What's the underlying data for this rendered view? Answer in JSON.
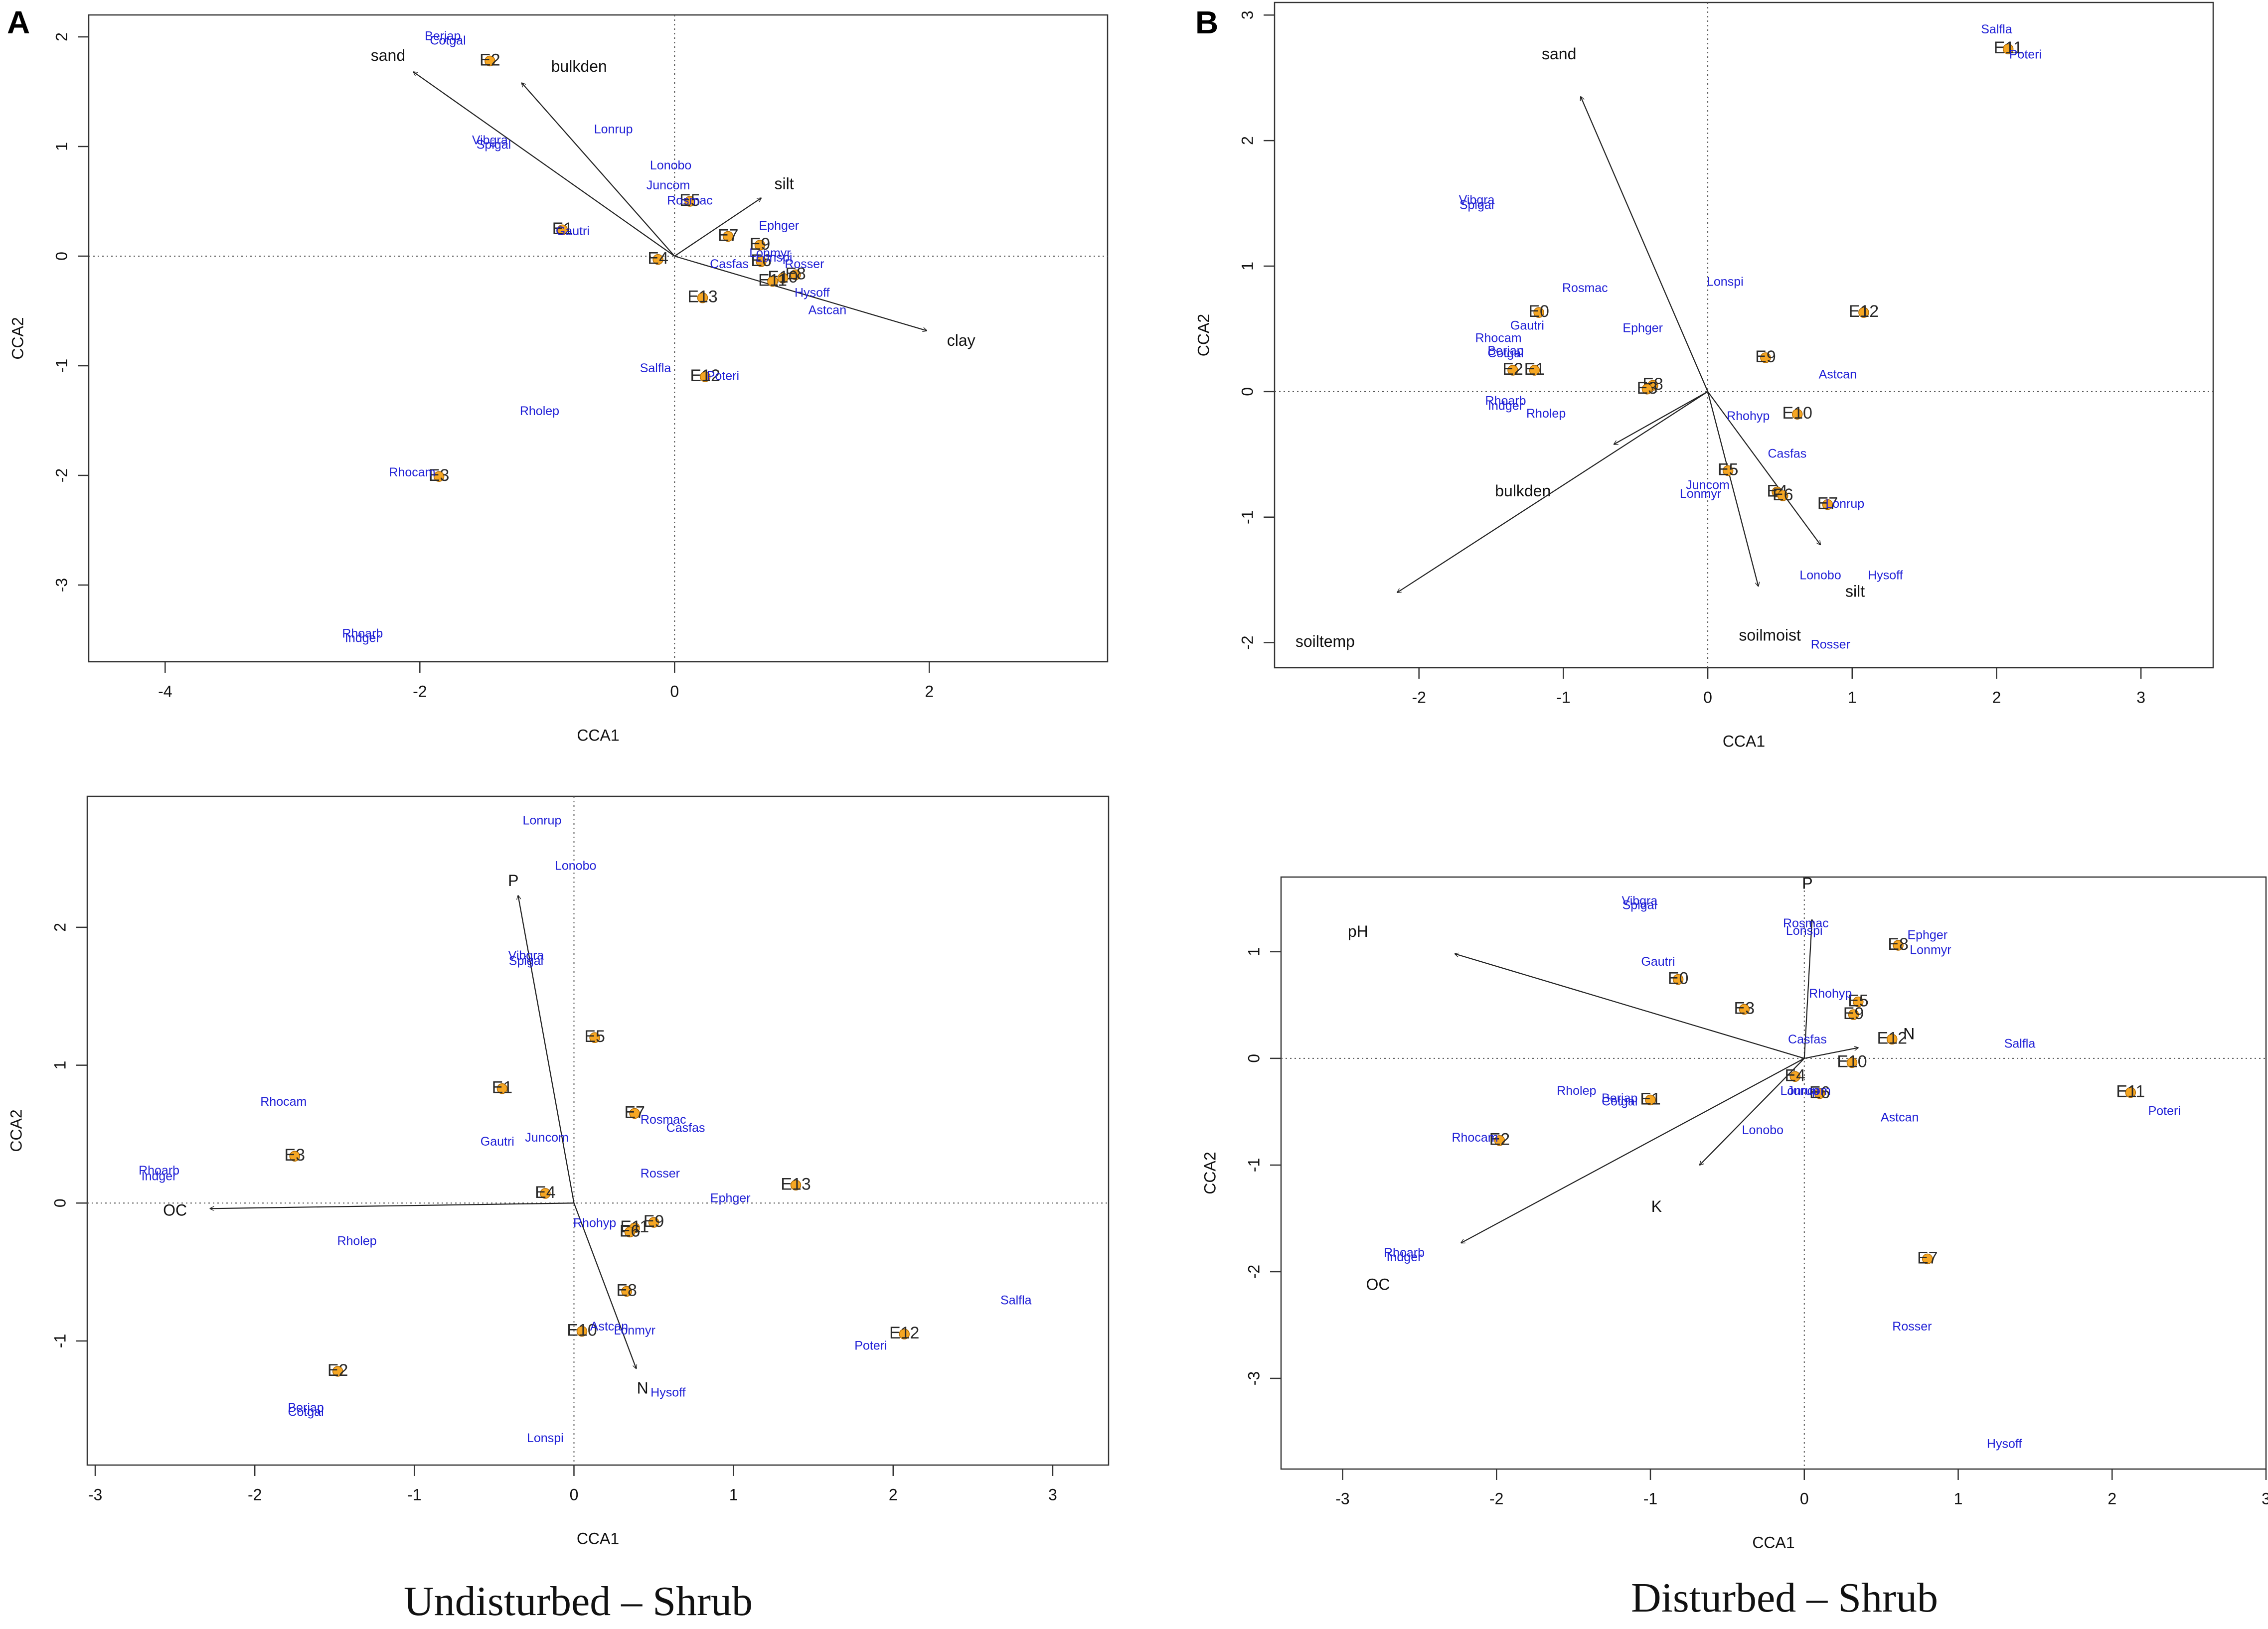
{
  "panel_letters": {
    "a": "A",
    "b": "B"
  },
  "captions": {
    "left": "Undisturbed – Shrub",
    "right": "Disturbed – Shrub"
  },
  "colors": {
    "species": "#1f1fd6",
    "site_marker": "#f5a623",
    "text": "#111111",
    "axis": "#333333"
  },
  "chart_data": [
    {
      "id": "ud_top",
      "type": "scatter",
      "title": "",
      "xlabel": "CCA1",
      "ylabel": "CCA2",
      "xlim": [
        -4.6,
        3.4
      ],
      "ylim": [
        -3.7,
        2.2
      ],
      "xticks": [
        -4,
        -2,
        0,
        2
      ],
      "yticks": [
        -3,
        -2,
        -1,
        0,
        1,
        2
      ],
      "arrows": [
        {
          "label": "sand",
          "x": -2.05,
          "y": 1.68,
          "lx": -2.25,
          "ly": 1.82
        },
        {
          "label": "bulkden",
          "x": -1.2,
          "y": 1.58,
          "lx": -0.75,
          "ly": 1.72
        },
        {
          "label": "silt",
          "x": 0.68,
          "y": 0.53,
          "lx": 0.86,
          "ly": 0.65
        },
        {
          "label": "clay",
          "x": 1.98,
          "y": -0.68,
          "lx": 2.25,
          "ly": -0.78
        }
      ],
      "sites": [
        {
          "label": "E2",
          "x": -1.45,
          "y": 1.78
        },
        {
          "label": "E1",
          "x": -0.88,
          "y": 0.24
        },
        {
          "label": "E5",
          "x": 0.12,
          "y": 0.5
        },
        {
          "label": "E7",
          "x": 0.42,
          "y": 0.18
        },
        {
          "label": "E9",
          "x": 0.67,
          "y": 0.1
        },
        {
          "label": "E4",
          "x": -0.13,
          "y": -0.03
        },
        {
          "label": "E6",
          "x": 0.68,
          "y": -0.05
        },
        {
          "label": "E8",
          "x": 0.95,
          "y": -0.17
        },
        {
          "label": "E10",
          "x": 0.85,
          "y": -0.2
        },
        {
          "label": "E11",
          "x": 0.77,
          "y": -0.23
        },
        {
          "label": "E13",
          "x": 0.22,
          "y": -0.38
        },
        {
          "label": "E12",
          "x": 0.24,
          "y": -1.1
        },
        {
          "label": "E3",
          "x": -1.85,
          "y": -2.01
        }
      ],
      "species": [
        {
          "label": "Berjap",
          "x": -1.82,
          "y": 2.0
        },
        {
          "label": "Cotgal",
          "x": -1.78,
          "y": 1.96
        },
        {
          "label": "Lonrup",
          "x": -0.48,
          "y": 1.15
        },
        {
          "label": "Vibgra",
          "x": -1.45,
          "y": 1.05
        },
        {
          "label": "Spigal",
          "x": -1.42,
          "y": 1.01
        },
        {
          "label": "Lonobo",
          "x": -0.03,
          "y": 0.82
        },
        {
          "label": "Juncom",
          "x": -0.05,
          "y": 0.64
        },
        {
          "label": "Rosmac",
          "x": 0.12,
          "y": 0.5
        },
        {
          "label": "Gautri",
          "x": -0.8,
          "y": 0.22
        },
        {
          "label": "Ephger",
          "x": 0.82,
          "y": 0.27
        },
        {
          "label": "Lonmyr",
          "x": 0.75,
          "y": 0.02
        },
        {
          "label": "Lonspi",
          "x": 0.78,
          "y": -0.02
        },
        {
          "label": "Casfas",
          "x": 0.43,
          "y": -0.08
        },
        {
          "label": "Rosser",
          "x": 1.02,
          "y": -0.08
        },
        {
          "label": "Hysoff",
          "x": 1.08,
          "y": -0.34
        },
        {
          "label": "Astcan",
          "x": 1.2,
          "y": -0.5
        },
        {
          "label": "Salfla",
          "x": -0.15,
          "y": -1.03
        },
        {
          "label": "Poteri",
          "x": 0.38,
          "y": -1.1
        },
        {
          "label": "Rholep",
          "x": -1.06,
          "y": -1.42
        },
        {
          "label": "Rhocam",
          "x": -2.06,
          "y": -1.98
        },
        {
          "label": "Rhoarb",
          "x": -2.45,
          "y": -3.45
        },
        {
          "label": "Indger",
          "x": -2.45,
          "y": -3.49
        }
      ]
    },
    {
      "id": "d_top",
      "type": "scatter",
      "title": "",
      "xlabel": "CCA1",
      "ylabel": "CCA2",
      "xlim": [
        -3.0,
        3.5
      ],
      "ylim": [
        -2.2,
        3.1
      ],
      "xticks": [
        -2,
        -1,
        0,
        1,
        2,
        3
      ],
      "yticks": [
        -2,
        -1,
        0,
        1,
        2,
        3
      ],
      "arrows": [
        {
          "label": "sand",
          "x": -0.88,
          "y": 2.35,
          "lx": -1.03,
          "ly": 2.68
        },
        {
          "label": "bulkden",
          "x": -0.65,
          "y": -0.42,
          "lx": -1.28,
          "ly": -0.8
        },
        {
          "label": "soiltemp",
          "x": -2.15,
          "y": -1.6,
          "lx": -2.65,
          "ly": -2.0
        },
        {
          "label": "soilmoist",
          "x": 0.35,
          "y": -1.55,
          "lx": 0.43,
          "ly": -1.95
        },
        {
          "label": "silt",
          "x": 0.78,
          "y": -1.22,
          "lx": 1.02,
          "ly": -1.6
        }
      ],
      "sites": [
        {
          "label": "E11",
          "x": 2.08,
          "y": 2.73
        },
        {
          "label": "E12",
          "x": 1.08,
          "y": 0.63
        },
        {
          "label": "E0",
          "x": -1.17,
          "y": 0.63
        },
        {
          "label": "E9",
          "x": 0.4,
          "y": 0.27
        },
        {
          "label": "E2",
          "x": -1.35,
          "y": 0.17
        },
        {
          "label": "E1",
          "x": -1.2,
          "y": 0.17
        },
        {
          "label": "E8",
          "x": -0.38,
          "y": 0.05
        },
        {
          "label": "E3",
          "x": -0.42,
          "y": 0.02
        },
        {
          "label": "E10",
          "x": 0.62,
          "y": -0.18
        },
        {
          "label": "E5",
          "x": 0.14,
          "y": -0.63
        },
        {
          "label": "E4",
          "x": 0.48,
          "y": -0.8
        },
        {
          "label": "E6",
          "x": 0.52,
          "y": -0.83
        },
        {
          "label": "E7",
          "x": 0.83,
          "y": -0.9
        }
      ],
      "species": [
        {
          "label": "Salfla",
          "x": 2.0,
          "y": 2.88
        },
        {
          "label": "Poteri",
          "x": 2.2,
          "y": 2.68
        },
        {
          "label": "Vibgra",
          "x": -1.6,
          "y": 1.52
        },
        {
          "label": "Spigal",
          "x": -1.6,
          "y": 1.48
        },
        {
          "label": "Lonspi",
          "x": 0.12,
          "y": 0.87
        },
        {
          "label": "Rosmac",
          "x": -0.85,
          "y": 0.82
        },
        {
          "label": "Gautri",
          "x": -1.25,
          "y": 0.52
        },
        {
          "label": "Ephger",
          "x": -0.45,
          "y": 0.5
        },
        {
          "label": "Rhocam",
          "x": -1.45,
          "y": 0.42
        },
        {
          "label": "Berjap",
          "x": -1.4,
          "y": 0.32
        },
        {
          "label": "Cotgal",
          "x": -1.4,
          "y": 0.3
        },
        {
          "label": "Astcan",
          "x": 0.9,
          "y": 0.13
        },
        {
          "label": "Rhoarb",
          "x": -1.4,
          "y": -0.08
        },
        {
          "label": "Indger",
          "x": -1.4,
          "y": -0.12
        },
        {
          "label": "Rholep",
          "x": -1.12,
          "y": -0.18
        },
        {
          "label": "Rhohyp",
          "x": 0.28,
          "y": -0.2
        },
        {
          "label": "Casfas",
          "x": 0.55,
          "y": -0.5
        },
        {
          "label": "Juncom",
          "x": 0.0,
          "y": -0.75
        },
        {
          "label": "Lonmyr",
          "x": -0.05,
          "y": -0.82
        },
        {
          "label": "Lonrup",
          "x": 0.95,
          "y": -0.9
        },
        {
          "label": "Lonobo",
          "x": 0.78,
          "y": -1.47
        },
        {
          "label": "Hysoff",
          "x": 1.23,
          "y": -1.47
        },
        {
          "label": "Rosser",
          "x": 0.85,
          "y": -2.02
        }
      ]
    },
    {
      "id": "ud_bottom",
      "type": "scatter",
      "title": "",
      "xlabel": "CCA1",
      "ylabel": "CCA2",
      "xlim": [
        -3.05,
        3.35
      ],
      "ylim": [
        -1.9,
        2.95
      ],
      "xticks": [
        -3,
        -2,
        -1,
        0,
        1,
        2,
        3
      ],
      "yticks": [
        -1,
        0,
        1,
        2
      ],
      "arrows": [
        {
          "label": "P",
          "x": -0.35,
          "y": 2.23,
          "lx": -0.38,
          "ly": 2.33
        },
        {
          "label": "OC",
          "x": -2.28,
          "y": -0.04,
          "lx": -2.5,
          "ly": -0.06
        },
        {
          "label": "N",
          "x": 0.39,
          "y": -1.2,
          "lx": 0.43,
          "ly": -1.35
        }
      ],
      "sites": [
        {
          "label": "E5",
          "x": 0.13,
          "y": 1.2
        },
        {
          "label": "E1",
          "x": -0.45,
          "y": 0.83
        },
        {
          "label": "E7",
          "x": 0.38,
          "y": 0.65
        },
        {
          "label": "E3",
          "x": -1.75,
          "y": 0.34
        },
        {
          "label": "E4",
          "x": -0.18,
          "y": 0.07
        },
        {
          "label": "E13",
          "x": 1.39,
          "y": 0.13
        },
        {
          "label": "E9",
          "x": 0.5,
          "y": -0.14
        },
        {
          "label": "E11",
          "x": 0.38,
          "y": -0.18
        },
        {
          "label": "E6",
          "x": 0.35,
          "y": -0.21
        },
        {
          "label": "E8",
          "x": 0.33,
          "y": -0.64
        },
        {
          "label": "E10",
          "x": 0.05,
          "y": -0.93
        },
        {
          "label": "E12",
          "x": 2.07,
          "y": -0.95
        },
        {
          "label": "E2",
          "x": -1.48,
          "y": -1.22
        }
      ],
      "species": [
        {
          "label": "Lonrup",
          "x": -0.2,
          "y": 2.77
        },
        {
          "label": "Lonobo",
          "x": 0.01,
          "y": 2.44
        },
        {
          "label": "Vibgra",
          "x": -0.3,
          "y": 1.79
        },
        {
          "label": "Spigal",
          "x": -0.3,
          "y": 1.75
        },
        {
          "label": "Rhocam",
          "x": -1.82,
          "y": 0.73
        },
        {
          "label": "Rosmac",
          "x": 0.56,
          "y": 0.6
        },
        {
          "label": "Casfas",
          "x": 0.7,
          "y": 0.54
        },
        {
          "label": "Juncom",
          "x": -0.17,
          "y": 0.47
        },
        {
          "label": "Gautri",
          "x": -0.48,
          "y": 0.44
        },
        {
          "label": "Rhoarb",
          "x": -2.6,
          "y": 0.23
        },
        {
          "label": "Indger",
          "x": -2.6,
          "y": 0.19
        },
        {
          "label": "Rosser",
          "x": 0.54,
          "y": 0.21
        },
        {
          "label": "Ephger",
          "x": 0.98,
          "y": 0.03
        },
        {
          "label": "Rhohyp",
          "x": 0.13,
          "y": -0.15
        },
        {
          "label": "Rholep",
          "x": -1.36,
          "y": -0.28
        },
        {
          "label": "Astcan",
          "x": 0.22,
          "y": -0.9
        },
        {
          "label": "Lonmyr",
          "x": 0.38,
          "y": -0.93
        },
        {
          "label": "Poteri",
          "x": 1.86,
          "y": -1.04
        },
        {
          "label": "Salfla",
          "x": 2.77,
          "y": -0.71
        },
        {
          "label": "Hysoff",
          "x": 0.59,
          "y": -1.38
        },
        {
          "label": "Berjap",
          "x": -1.68,
          "y": -1.49
        },
        {
          "label": "Cotgal",
          "x": -1.68,
          "y": -1.52
        },
        {
          "label": "Lonspi",
          "x": -0.18,
          "y": -1.71
        }
      ]
    },
    {
      "id": "d_bottom",
      "type": "scatter",
      "title": "",
      "xlabel": "CCA1",
      "ylabel": "CCA2",
      "xlim": [
        -3.4,
        3.0
      ],
      "ylim": [
        -3.85,
        1.7
      ],
      "xticks": [
        -3,
        -2,
        -1,
        0,
        1,
        2,
        3
      ],
      "yticks": [
        -3,
        -2,
        -1,
        0,
        1
      ],
      "arrows": [
        {
          "label": "P",
          "x": 0.05,
          "y": 1.3,
          "lx": 0.02,
          "ly": 1.63
        },
        {
          "label": "pH",
          "x": -2.27,
          "y": 0.98,
          "lx": -2.9,
          "ly": 1.18
        },
        {
          "label": "N",
          "x": 0.35,
          "y": 0.1,
          "lx": 0.68,
          "ly": 0.22
        },
        {
          "label": "K",
          "x": -0.68,
          "y": -1.0,
          "lx": -0.96,
          "ly": -1.4
        },
        {
          "label": "OC",
          "x": -2.23,
          "y": -1.73,
          "lx": -2.77,
          "ly": -2.13
        }
      ],
      "sites": [
        {
          "label": "E8",
          "x": 0.61,
          "y": 1.06
        },
        {
          "label": "E0",
          "x": -0.82,
          "y": 0.74
        },
        {
          "label": "E3",
          "x": -0.39,
          "y": 0.46
        },
        {
          "label": "E5",
          "x": 0.35,
          "y": 0.53
        },
        {
          "label": "E9",
          "x": 0.32,
          "y": 0.41
        },
        {
          "label": "E12",
          "x": 0.57,
          "y": 0.18
        },
        {
          "label": "E10",
          "x": 0.31,
          "y": -0.04
        },
        {
          "label": "E4",
          "x": -0.06,
          "y": -0.17
        },
        {
          "label": "E6",
          "x": 0.1,
          "y": -0.33
        },
        {
          "label": "E1",
          "x": -1.0,
          "y": -0.39
        },
        {
          "label": "E11",
          "x": 2.12,
          "y": -0.32
        },
        {
          "label": "E2",
          "x": -1.98,
          "y": -0.77
        },
        {
          "label": "E7",
          "x": 0.8,
          "y": -1.88
        }
      ],
      "species": [
        {
          "label": "Vibgra",
          "x": -1.07,
          "y": 1.47
        },
        {
          "label": "Spigal",
          "x": -1.07,
          "y": 1.43
        },
        {
          "label": "Rosmac",
          "x": 0.01,
          "y": 1.26
        },
        {
          "label": "Lonspi",
          "x": 0.0,
          "y": 1.19
        },
        {
          "label": "Ephger",
          "x": 0.8,
          "y": 1.15
        },
        {
          "label": "Lonmyr",
          "x": 0.82,
          "y": 1.01
        },
        {
          "label": "Gautri",
          "x": -0.95,
          "y": 0.9
        },
        {
          "label": "Rhohyp",
          "x": 0.17,
          "y": 0.6
        },
        {
          "label": "Casfas",
          "x": 0.02,
          "y": 0.17
        },
        {
          "label": "Salfla",
          "x": 1.4,
          "y": 0.13
        },
        {
          "label": "Rholep",
          "x": -1.48,
          "y": -0.31
        },
        {
          "label": "Berjap",
          "x": -1.2,
          "y": -0.38
        },
        {
          "label": "Cotgal",
          "x": -1.2,
          "y": -0.41
        },
        {
          "label": "Lonrup",
          "x": -0.03,
          "y": -0.31
        },
        {
          "label": "Juncom",
          "x": 0.03,
          "y": -0.31
        },
        {
          "label": "Lonobo",
          "x": -0.27,
          "y": -0.68
        },
        {
          "label": "Astcan",
          "x": 0.62,
          "y": -0.56
        },
        {
          "label": "Poteri",
          "x": 2.34,
          "y": -0.5
        },
        {
          "label": "Rhocam",
          "x": -2.14,
          "y": -0.75
        },
        {
          "label": "Rhoarb",
          "x": -2.6,
          "y": -1.83
        },
        {
          "label": "Indger",
          "x": -2.6,
          "y": -1.87
        },
        {
          "label": "Rosser",
          "x": 0.7,
          "y": -2.52
        },
        {
          "label": "Hysoff",
          "x": 1.3,
          "y": -3.62
        }
      ]
    }
  ]
}
